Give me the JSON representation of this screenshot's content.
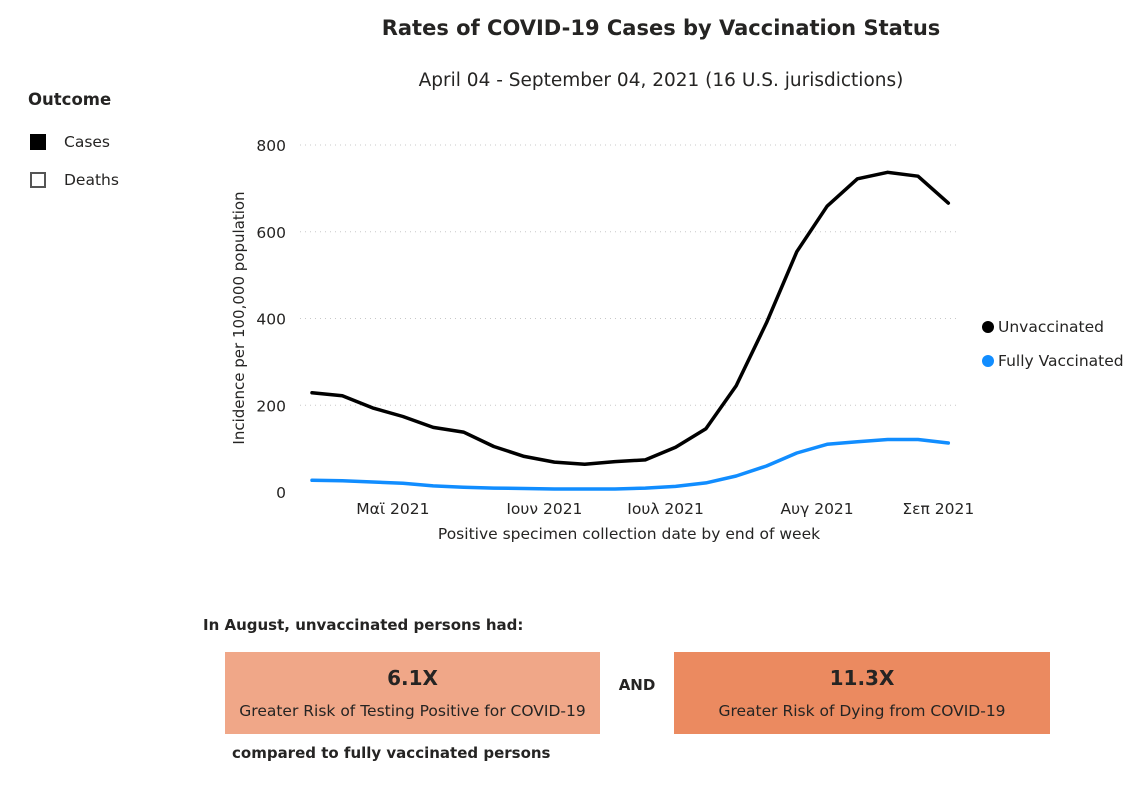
{
  "chart_data": {
    "type": "line",
    "title": "Rates of COVID-19 Cases by Vaccination Status",
    "subtitle": "April 04 - September 04, 2021 (16 U.S. jurisdictions)",
    "xlabel": "Positive specimen collection date by end of week",
    "ylabel": "Incidence per 100,000 population",
    "ylim": [
      0,
      800
    ],
    "yticks": [
      0,
      200,
      400,
      600,
      800
    ],
    "grid": true,
    "legend_position": "right",
    "x": [
      "2021-04-10",
      "2021-04-17",
      "2021-04-24",
      "2021-05-01",
      "2021-05-08",
      "2021-05-15",
      "2021-05-22",
      "2021-05-29",
      "2021-06-05",
      "2021-06-12",
      "2021-06-19",
      "2021-06-26",
      "2021-07-03",
      "2021-07-10",
      "2021-07-17",
      "2021-07-24",
      "2021-07-31",
      "2021-08-07",
      "2021-08-14",
      "2021-08-21",
      "2021-08-28",
      "2021-09-04"
    ],
    "xtick_labels": [
      {
        "label": "Μαϊ 2021",
        "index": 3
      },
      {
        "label": "Ιουν 2021",
        "index": 8
      },
      {
        "label": "Ιουλ 2021",
        "index": 12
      },
      {
        "label": "Αυγ 2021",
        "index": 17
      },
      {
        "label": "Σεπ 2021",
        "index": 21
      }
    ],
    "series": [
      {
        "name": "Unvaccinated",
        "color": "#000000",
        "values": [
          229,
          222,
          194,
          174,
          149,
          138,
          105,
          82,
          69,
          64,
          70,
          74,
          103,
          146,
          245,
          390,
          554,
          659,
          722,
          737,
          728,
          666
        ]
      },
      {
        "name": "Fully Vaccinated",
        "color": "#118dff",
        "values": [
          27,
          26,
          23,
          20,
          14,
          11,
          9,
          8,
          7,
          7,
          7,
          9,
          13,
          21,
          37,
          60,
          90,
          110,
          116,
          121,
          121,
          113
        ]
      }
    ]
  },
  "outcome_legend": {
    "title": "Outcome",
    "items": [
      {
        "label": "Cases",
        "state": "selected"
      },
      {
        "label": "Deaths",
        "state": "unselected"
      }
    ]
  },
  "summary": {
    "heading": "In August, unvaccinated persons had:",
    "cards": [
      {
        "value": "6.1X",
        "label": "Greater Risk of Testing Positive for COVID-19",
        "color": "#f0a788"
      },
      {
        "value": "11.3X",
        "label": "Greater Risk of Dying from COVID-19",
        "color": "#eb8a60"
      }
    ],
    "connector": "AND",
    "footer": "compared to fully vaccinated persons"
  }
}
